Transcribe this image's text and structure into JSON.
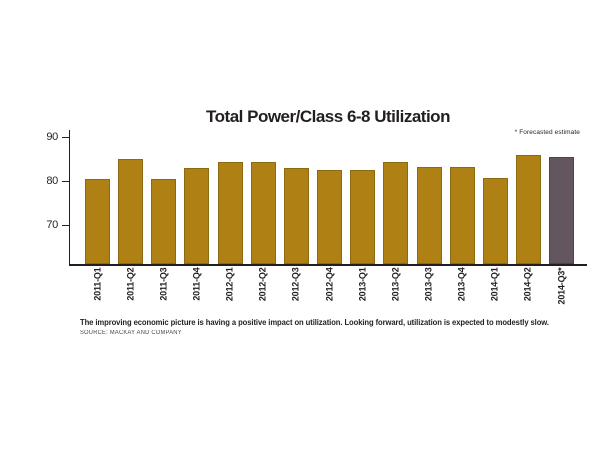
{
  "chart": {
    "title": "Total Power/Class 6-8 Utilization",
    "note": "* Forecasted estimate",
    "caption": "The improving economic picture is having a positive impact on utilization.  Looking forward, utilization is expected to modestly slow.",
    "source": "SOURCE: MACKAY AND COMPANY"
  },
  "chart_data": {
    "type": "bar",
    "title": "Total Power/Class 6-8 Utilization",
    "categories": [
      "2011-Q1",
      "2011-Q2",
      "2011-Q3",
      "2011-Q4",
      "2012-Q1",
      "2012-Q2",
      "2012-Q3",
      "2012-Q4",
      "2013-Q1",
      "2013-Q2",
      "2013-Q3",
      "2013-Q4",
      "2014-Q1",
      "2014-Q2",
      "2014-Q3*"
    ],
    "values": [
      80.5,
      85,
      80.5,
      83,
      84.5,
      84.3,
      83,
      82.5,
      82.5,
      84.3,
      83.2,
      83.3,
      80.8,
      86,
      85.5
    ],
    "forecast_index": 14,
    "annotations": [
      "* Forecasted estimate"
    ],
    "xlabel": "",
    "ylabel": "",
    "yticks": [
      70,
      80,
      90
    ],
    "ylim": [
      61,
      92
    ],
    "grid": false,
    "legend_position": "none",
    "colors": {
      "bar": "#AF8014",
      "bar_border": "#8C6A12",
      "forecast_bar": "#64565F",
      "forecast_bar_border": "#4E434D",
      "axis": "#231F20",
      "text": "#231F20"
    }
  }
}
